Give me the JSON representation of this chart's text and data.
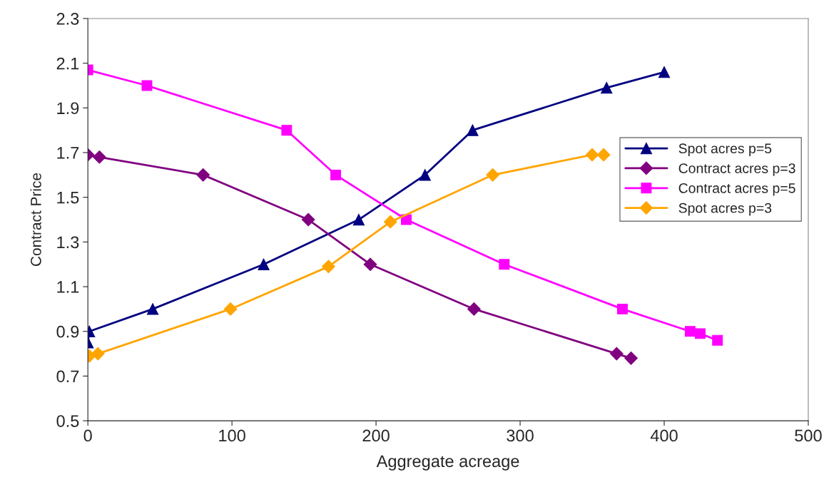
{
  "chart_data": {
    "type": "line",
    "xlabel": "Aggregate acreage",
    "ylabel": "Contract Price",
    "xlim": [
      0,
      500
    ],
    "xticks": [
      0,
      100,
      200,
      300,
      400,
      500
    ],
    "ylim": [
      0.5,
      2.3
    ],
    "yticks": [
      0.5,
      0.7,
      0.9,
      1.1,
      1.3,
      1.5,
      1.7,
      1.9,
      2.1,
      2.3
    ],
    "grid": false,
    "legend": "right",
    "series": [
      {
        "name": "Spot acres p=5",
        "color": "#000080",
        "marker": "triangle",
        "x": [
          0,
          1,
          45,
          122,
          188,
          234,
          267,
          360,
          400
        ],
        "values": [
          0.85,
          0.9,
          1.0,
          1.2,
          1.4,
          1.6,
          1.8,
          1.99,
          2.06
        ]
      },
      {
        "name": "Contract acres p=3",
        "color": "#800080",
        "marker": "diamond",
        "x": [
          0,
          8,
          80,
          153,
          196,
          268,
          367,
          377
        ],
        "values": [
          1.69,
          1.68,
          1.6,
          1.4,
          1.2,
          1.0,
          0.8,
          0.78
        ]
      },
      {
        "name": "Contract acres p=5",
        "color": "#ff00ff",
        "marker": "square",
        "x": [
          0,
          41,
          138,
          172,
          221,
          289,
          371,
          418,
          425,
          437
        ],
        "values": [
          2.07,
          2.0,
          1.8,
          1.6,
          1.4,
          1.2,
          1.0,
          0.9,
          0.89,
          0.86
        ]
      },
      {
        "name": "Spot acres p=3",
        "color": "#ffa500",
        "marker": "diamond",
        "x": [
          1,
          7,
          99,
          167,
          210,
          281,
          350,
          358
        ],
        "values": [
          0.79,
          0.8,
          1.0,
          1.19,
          1.39,
          1.6,
          1.69,
          1.69
        ]
      }
    ]
  }
}
